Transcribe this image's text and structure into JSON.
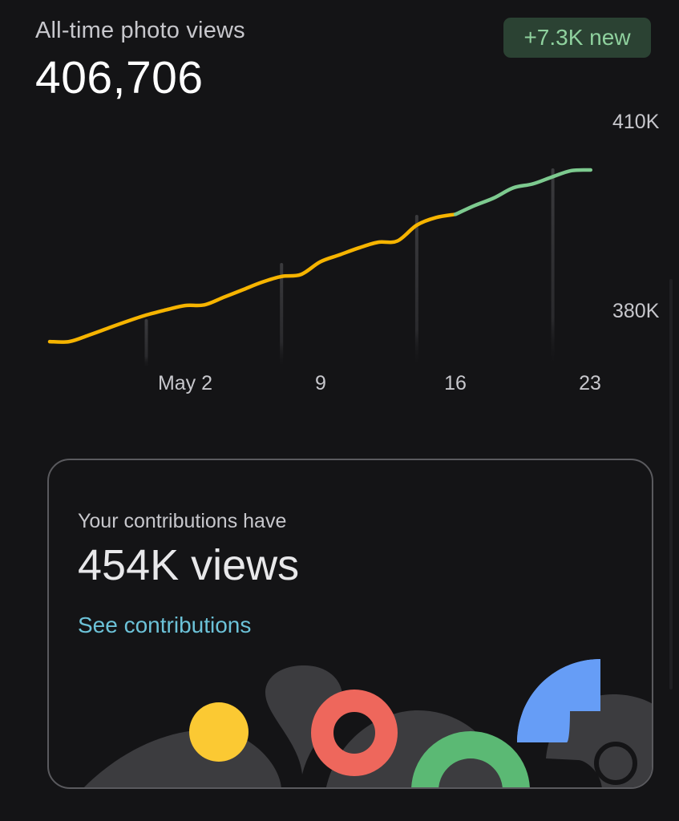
{
  "header": {
    "label": "All-time photo views",
    "total_views": "406,706",
    "new_badge": "+7.3K new"
  },
  "chart_data": {
    "type": "line",
    "xlabel": "",
    "ylabel": "",
    "x_ticks": [
      "May 2",
      "9",
      "16",
      "23"
    ],
    "y_ticks": [
      "410K",
      "380K"
    ],
    "ylim": [
      375000,
      413000
    ],
    "grid": false,
    "colors": {
      "past": "#f6b400",
      "recent": "#7dca8f"
    },
    "highlight_from_day": 16,
    "series": [
      {
        "x": [
          -5,
          -4,
          -3,
          -2,
          -1,
          0,
          1,
          2,
          3,
          4,
          5,
          6,
          7,
          8,
          9,
          10,
          11,
          12,
          13,
          14,
          15,
          16,
          17,
          18,
          19,
          20,
          21,
          22,
          23
        ],
        "y": [
          375300,
          375300,
          376300,
          377400,
          378500,
          379500,
          380300,
          381000,
          381100,
          382300,
          383500,
          384700,
          385600,
          385900,
          387900,
          389000,
          390100,
          391000,
          391200,
          393700,
          394900,
          395400,
          396800,
          398000,
          399600,
          400200,
          401300,
          402300,
          402400
        ]
      }
    ]
  },
  "card": {
    "subtitle": "Your contributions have",
    "title": "454K views",
    "link": "See contributions"
  }
}
